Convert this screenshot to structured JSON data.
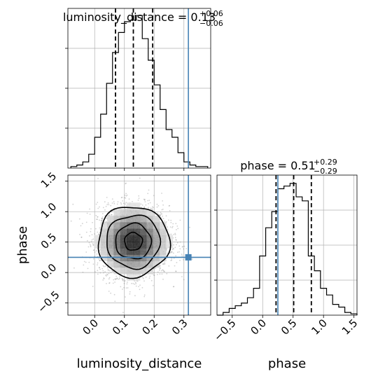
{
  "chart_data": [
    {
      "type": "histogram",
      "panel": "luminosity_distance-marginal",
      "title_prefix": "luminosity_distance = 0.13",
      "title_sup": "+0.06",
      "title_sub": "−0.06",
      "xlim": [
        -0.09,
        0.39
      ],
      "ylim": [
        0,
        1
      ],
      "xlabel": "luminosity_distance",
      "xticks": [
        0.0,
        0.1,
        0.2,
        0.3
      ],
      "xtick_labels": [
        "0.0",
        "0.1",
        "0.2",
        "0.3"
      ],
      "bins": [
        -0.08,
        -0.06,
        -0.04,
        -0.02,
        0.0,
        0.02,
        0.04,
        0.06,
        0.08,
        0.1,
        0.12,
        0.14,
        0.16,
        0.18,
        0.2,
        0.22,
        0.24,
        0.26,
        0.28,
        0.3,
        0.32,
        0.34,
        0.36,
        0.38
      ],
      "counts": [
        0.01,
        0.02,
        0.04,
        0.09,
        0.2,
        0.35,
        0.55,
        0.75,
        0.88,
        0.95,
        0.96,
        0.99,
        0.84,
        0.7,
        0.54,
        0.38,
        0.25,
        0.2,
        0.1,
        0.04,
        0.02,
        0.01,
        0.01
      ],
      "quantiles": [
        0.07,
        0.13,
        0.195
      ],
      "truth": 0.315
    },
    {
      "type": "histogram",
      "panel": "phase-marginal",
      "title_prefix": "phase = 0.51",
      "title_sup": "+0.29",
      "title_sub": "−0.29",
      "xlim": [
        -0.75,
        1.55
      ],
      "ylim": [
        0,
        1
      ],
      "xlabel": "phase",
      "xticks": [
        -0.5,
        0.0,
        0.5,
        1.0,
        1.5
      ],
      "xtick_labels": [
        "−0.5",
        "0.0",
        "0.5",
        "1.0",
        "1.5"
      ],
      "bins": [
        -0.75,
        -0.65,
        -0.55,
        -0.45,
        -0.35,
        -0.25,
        -0.15,
        -0.05,
        0.05,
        0.15,
        0.25,
        0.35,
        0.45,
        0.55,
        0.65,
        0.75,
        0.85,
        0.95,
        1.05,
        1.15,
        1.25,
        1.35,
        1.45,
        1.55
      ],
      "counts": [
        0.0,
        0.02,
        0.05,
        0.07,
        0.09,
        0.13,
        0.2,
        0.44,
        0.65,
        0.77,
        0.94,
        0.96,
        0.98,
        0.88,
        0.85,
        0.44,
        0.33,
        0.2,
        0.15,
        0.08,
        0.06,
        0.02,
        0.01
      ],
      "quantiles": [
        0.22,
        0.51,
        0.8
      ],
      "truth": 0.25
    },
    {
      "type": "scatter",
      "panel": "2d-density",
      "xlabel": "luminosity_distance",
      "ylabel": "phase",
      "xlim": [
        -0.09,
        0.39
      ],
      "ylim": [
        -0.7,
        1.6
      ],
      "xticks": [
        0.0,
        0.1,
        0.2,
        0.3
      ],
      "xtick_labels": [
        "0.0",
        "0.1",
        "0.2",
        "0.3"
      ],
      "yticks": [
        -0.5,
        0.0,
        0.5,
        1.0,
        1.5
      ],
      "ytick_labels": [
        "−0.5",
        "0.0",
        "0.5",
        "1.0",
        "1.5"
      ],
      "center": [
        0.13,
        0.51
      ],
      "spread": [
        0.06,
        0.29
      ],
      "n_points": 3000,
      "contour_levels_sigma": [
        0.5,
        1.0,
        1.5,
        2.0
      ],
      "truth": [
        0.315,
        0.25
      ]
    }
  ],
  "colors": {
    "truth": "#4682b4",
    "grid": "#b0b0b0",
    "hist": "#000000",
    "points": "#7f7f7f"
  },
  "grid": true
}
